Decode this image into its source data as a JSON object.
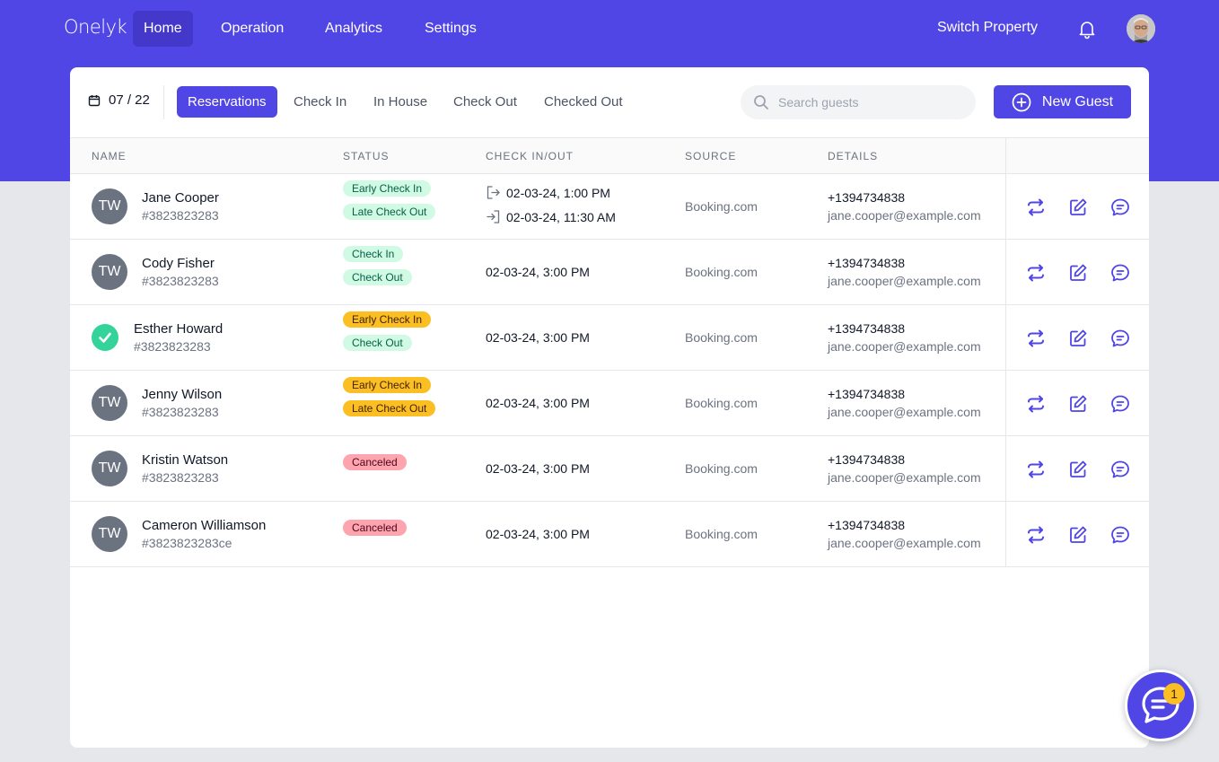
{
  "nav": {
    "logo": "Onelyk",
    "items": [
      "Home",
      "Operation",
      "Analytics",
      "Settings"
    ],
    "active": "Home",
    "switch_property": "Switch Property",
    "bell_icon": "bell-icon",
    "user_avatar": "user-avatar-photo"
  },
  "toolbar": {
    "date": "07 / 22",
    "calendar_icon": "calendar-icon",
    "tabs": [
      "Reservations",
      "Check In",
      "In House",
      "Check Out",
      "Checked Out"
    ],
    "active_tab": "Reservations",
    "search_placeholder": "Search guests",
    "new_guest_label": "New Guest"
  },
  "table": {
    "headers": [
      "Name",
      "Status",
      "Check In/Out",
      "Source",
      "Details"
    ],
    "rows": [
      {
        "initials": "TW",
        "checked": false,
        "name": "Jane Cooper",
        "id": "#3823823283",
        "badges": [
          {
            "label": "Early Check In",
            "color": "green"
          },
          {
            "label": "Late Check Out",
            "color": "green"
          }
        ],
        "checkin": "02-03-24, 1:00 PM",
        "checkout": "02-03-24, 11:30 AM",
        "source": "Booking.com",
        "phone": "+1394734838",
        "email": "jane.cooper@example.com"
      },
      {
        "initials": "TW",
        "checked": false,
        "name": "Cody Fisher",
        "id": "#3823823283",
        "badges": [
          {
            "label": "Check In",
            "color": "green"
          },
          {
            "label": "Check Out",
            "color": "green"
          }
        ],
        "date": "02-03-24, 3:00 PM",
        "source": "Booking.com",
        "phone": "+1394734838",
        "email": "jane.cooper@example.com"
      },
      {
        "initials": "",
        "checked": true,
        "name": "Esther Howard",
        "id": "#3823823283",
        "badges": [
          {
            "label": "Early Check In",
            "color": "yellow"
          },
          {
            "label": "Check Out",
            "color": "green"
          }
        ],
        "date": "02-03-24, 3:00 PM",
        "source": "Booking.com",
        "phone": "+1394734838",
        "email": "jane.cooper@example.com"
      },
      {
        "initials": "TW",
        "checked": false,
        "name": "Jenny Wilson",
        "id": "#3823823283",
        "badges": [
          {
            "label": "Early Check In",
            "color": "yellow"
          },
          {
            "label": "Late Check Out",
            "color": "yellow"
          }
        ],
        "date": "02-03-24, 3:00 PM",
        "source": "Booking.com",
        "phone": "+1394734838",
        "email": "jane.cooper@example.com"
      },
      {
        "initials": "TW",
        "checked": false,
        "name": "Kristin Watson",
        "id": "#3823823283",
        "badges": [
          {
            "label": "Canceled",
            "color": "red"
          }
        ],
        "date": "02-03-24, 3:00 PM",
        "source": "Booking.com",
        "phone": "+1394734838",
        "email": "jane.cooper@example.com"
      },
      {
        "initials": "TW",
        "checked": false,
        "name": "Cameron Williamson",
        "id": "#3823823283ce",
        "badges": [
          {
            "label": "Canceled",
            "color": "red"
          }
        ],
        "date": "02-03-24, 3:00 PM",
        "source": "Booking.com",
        "phone": "+1394734838",
        "email": "jane.cooper@example.com"
      }
    ],
    "row_actions": [
      "swap-icon",
      "edit-icon",
      "message-icon"
    ]
  },
  "chat": {
    "unread_count": "1",
    "icon": "chat-bubble-icon"
  },
  "colors": {
    "primary": "#4f46e5",
    "primary_dark": "#4338ca",
    "badge_green": "#d1fae5",
    "badge_yellow": "#fbbf24",
    "badge_red": "#fda4af",
    "check_green": "#34d399"
  }
}
